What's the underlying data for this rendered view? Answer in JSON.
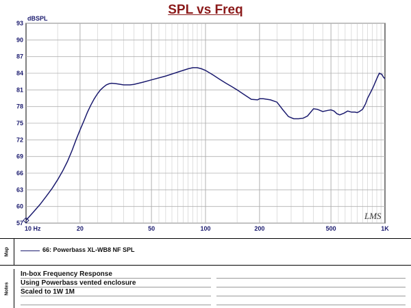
{
  "title": "SPL vs Freq",
  "chart_data": {
    "type": "line",
    "title": "SPL vs Freq",
    "ylabel": "dBSPL",
    "xscale": "log",
    "xlim": [
      10,
      1000
    ],
    "ylim": [
      57,
      93
    ],
    "yticks": [
      57,
      60,
      63,
      66,
      69,
      72,
      75,
      78,
      81,
      84,
      87,
      90,
      93
    ],
    "xtick_labels": [
      {
        "value": 10,
        "label": "10 Hz"
      },
      {
        "value": 20,
        "label": "20"
      },
      {
        "value": 50,
        "label": "50"
      },
      {
        "value": 100,
        "label": "100"
      },
      {
        "value": 200,
        "label": "200"
      },
      {
        "value": 500,
        "label": "500"
      },
      {
        "value": 1000,
        "label": "1K"
      }
    ],
    "grid": true,
    "series": [
      {
        "name": "66: Powerbass XL-WB8 NF SPL",
        "color": "#1a1a6e",
        "x": [
          10,
          11,
          12,
          13,
          14,
          15,
          16,
          17,
          18,
          19,
          20,
          21,
          22,
          23,
          24,
          25,
          26,
          27,
          28,
          29,
          30,
          32,
          35,
          38,
          40,
          45,
          50,
          60,
          70,
          80,
          85,
          90,
          95,
          100,
          110,
          120,
          130,
          140,
          150,
          160,
          180,
          195,
          200,
          210,
          230,
          250,
          270,
          290,
          310,
          330,
          350,
          370,
          400,
          420,
          450,
          480,
          500,
          520,
          540,
          560,
          590,
          620,
          650,
          680,
          700,
          720,
          750,
          780,
          800,
          830,
          860,
          900,
          930,
          960,
          980,
          1000
        ],
        "y": [
          57.5,
          59.0,
          60.4,
          61.9,
          63.3,
          64.8,
          66.4,
          68.1,
          70.0,
          72.0,
          73.8,
          75.4,
          77.0,
          78.3,
          79.4,
          80.3,
          81.0,
          81.5,
          81.9,
          82.1,
          82.2,
          82.1,
          81.9,
          81.9,
          82.0,
          82.4,
          82.8,
          83.5,
          84.2,
          84.8,
          85.0,
          85.0,
          84.8,
          84.5,
          83.7,
          82.9,
          82.2,
          81.6,
          81.0,
          80.4,
          79.3,
          79.2,
          79.4,
          79.4,
          79.2,
          78.8,
          77.4,
          76.2,
          75.8,
          75.8,
          75.9,
          76.3,
          77.6,
          77.5,
          77.1,
          77.3,
          77.4,
          77.2,
          76.7,
          76.5,
          76.8,
          77.2,
          77.0,
          77.0,
          76.9,
          77.1,
          77.5,
          78.5,
          79.5,
          80.5,
          81.5,
          83.0,
          84.0,
          83.8,
          83.3,
          83.0
        ]
      }
    ],
    "annotation": "LMS"
  },
  "map": {
    "tab_label": "Map",
    "legend_entry": "66: Powerbass XL-WB8 NF SPL"
  },
  "notes": {
    "tab_label": "Notes",
    "lines": [
      "In-box Frequency Response",
      "Using Powerbass vented enclosure",
      "Scaled to 1W 1M"
    ]
  },
  "colors": {
    "curve": "#1a1a6e",
    "title": "#8b1a1a",
    "grid": "#b0b0b0",
    "minor_grid": "#c8c8c8"
  }
}
